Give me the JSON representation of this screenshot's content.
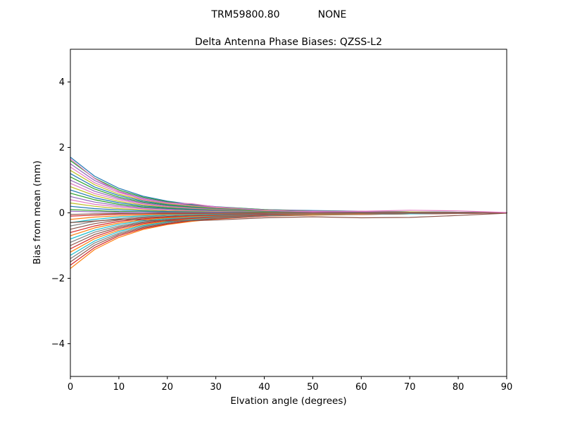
{
  "header": {
    "antenna": "TRM59800.80",
    "dome": "NONE"
  },
  "chart_data": {
    "type": "line",
    "title": "Delta Antenna Phase Biases: QZSS-L2",
    "xlabel": "Elvation angle (degrees)",
    "ylabel": "Bias from mean (mm)",
    "xlim": [
      0,
      90
    ],
    "ylim": [
      -5,
      5
    ],
    "xticks": [
      0,
      10,
      20,
      30,
      40,
      50,
      60,
      70,
      80,
      90
    ],
    "xticklabels": [
      "0",
      "10",
      "20",
      "30",
      "40",
      "50",
      "60",
      "70",
      "80",
      "90"
    ],
    "yticks": [
      -4,
      -2,
      0,
      2,
      4
    ],
    "yticklabels": [
      "−4",
      "−2",
      "0",
      "2",
      "4"
    ],
    "grid": false,
    "legend": null,
    "frame_color": "#000000",
    "line_width": 1.2,
    "x": [
      0,
      5,
      10,
      15,
      20,
      25,
      30,
      40,
      50,
      60,
      70,
      80,
      90
    ],
    "series": [
      {
        "color": "#1f77b4",
        "values": [
          1.7,
          1.12,
          0.75,
          0.51,
          0.36,
          0.26,
          0.19,
          0.1,
          0.07,
          0.05,
          0.03,
          0.02,
          0
        ]
      },
      {
        "color": "#ff7f0e",
        "values": [
          -1.7,
          -1.12,
          -0.75,
          -0.51,
          -0.36,
          -0.26,
          -0.19,
          -0.1,
          -0.07,
          -0.05,
          -0.03,
          -0.02,
          0
        ]
      },
      {
        "color": "#2ca02c",
        "values": [
          1.6,
          1.06,
          0.7,
          0.48,
          0.34,
          0.24,
          0.18,
          0.1,
          0.06,
          0.05,
          0.03,
          0.02,
          0
        ]
      },
      {
        "color": "#d62728",
        "values": [
          -1.6,
          -1.06,
          -0.7,
          -0.48,
          -0.34,
          -0.24,
          -0.18,
          -0.1,
          -0.06,
          -0.05,
          -0.03,
          -0.02,
          0
        ]
      },
      {
        "color": "#9467bd",
        "values": [
          1.5,
          0.99,
          0.66,
          0.45,
          0.32,
          0.23,
          0.17,
          0.09,
          0.06,
          0.05,
          0.03,
          0.02,
          0
        ]
      },
      {
        "color": "#8c564b",
        "values": [
          -1.5,
          -0.99,
          -0.66,
          -0.45,
          -0.32,
          -0.23,
          -0.17,
          -0.09,
          -0.06,
          -0.05,
          -0.03,
          -0.02,
          0
        ]
      },
      {
        "color": "#e377c2",
        "values": [
          1.4,
          0.92,
          0.62,
          0.42,
          0.29,
          0.21,
          0.15,
          0.08,
          0.06,
          0.04,
          0.03,
          0.01,
          0
        ]
      },
      {
        "color": "#7f7f7f",
        "values": [
          -1.4,
          -0.92,
          -0.62,
          -0.42,
          -0.29,
          -0.21,
          -0.15,
          -0.08,
          -0.06,
          -0.04,
          -0.03,
          -0.01,
          0
        ]
      },
      {
        "color": "#bcbd22",
        "values": [
          1.3,
          0.86,
          0.57,
          0.39,
          0.27,
          0.2,
          0.14,
          0.08,
          0.05,
          0.04,
          0.03,
          0.01,
          0
        ]
      },
      {
        "color": "#17becf",
        "values": [
          -1.3,
          -0.86,
          -0.57,
          -0.39,
          -0.27,
          -0.2,
          -0.14,
          -0.08,
          -0.05,
          -0.04,
          -0.03,
          -0.01,
          0
        ]
      },
      {
        "color": "#1f77b4",
        "values": [
          1.2,
          0.79,
          0.53,
          0.36,
          0.25,
          0.18,
          0.13,
          0.07,
          0.05,
          0.04,
          0.02,
          0.01,
          0
        ]
      },
      {
        "color": "#ff7f0e",
        "values": [
          -1.2,
          -0.79,
          -0.53,
          -0.36,
          -0.25,
          -0.18,
          -0.13,
          -0.07,
          -0.05,
          -0.04,
          -0.02,
          -0.01,
          0
        ]
      },
      {
        "color": "#2ca02c",
        "values": [
          1.1,
          0.73,
          0.48,
          0.33,
          0.23,
          0.17,
          0.12,
          0.07,
          0.04,
          0.03,
          0.02,
          0.01,
          0
        ]
      },
      {
        "color": "#d62728",
        "values": [
          -1.1,
          -0.73,
          -0.48,
          -0.33,
          -0.23,
          -0.17,
          -0.12,
          -0.07,
          -0.04,
          -0.03,
          -0.02,
          -0.01,
          0
        ]
      },
      {
        "color": "#9467bd",
        "values": [
          1.0,
          0.66,
          0.44,
          0.3,
          0.21,
          0.15,
          0.11,
          0.06,
          0.04,
          0.03,
          0.02,
          0.01,
          0
        ]
      },
      {
        "color": "#8c564b",
        "values": [
          -1.0,
          -0.66,
          -0.44,
          -0.3,
          -0.21,
          -0.15,
          -0.11,
          -0.06,
          -0.04,
          -0.03,
          -0.02,
          -0.01,
          0
        ]
      },
      {
        "color": "#e377c2",
        "values": [
          0.9,
          0.59,
          0.4,
          0.27,
          0.19,
          0.14,
          0.1,
          0.05,
          0.04,
          0.03,
          0.02,
          0.01,
          0
        ]
      },
      {
        "color": "#7f7f7f",
        "values": [
          -0.9,
          -0.59,
          -0.4,
          -0.27,
          -0.19,
          -0.14,
          -0.1,
          -0.05,
          -0.04,
          -0.03,
          -0.02,
          -0.01,
          0
        ]
      },
      {
        "color": "#bcbd22",
        "values": [
          0.8,
          0.53,
          0.35,
          0.24,
          0.17,
          0.12,
          0.09,
          0.05,
          0.03,
          0.02,
          0.02,
          0.01,
          0
        ]
      },
      {
        "color": "#17becf",
        "values": [
          -0.8,
          -0.53,
          -0.35,
          -0.24,
          -0.17,
          -0.12,
          -0.09,
          -0.05,
          -0.03,
          -0.02,
          -0.02,
          -0.01,
          0
        ]
      },
      {
        "color": "#1f77b4",
        "values": [
          0.7,
          0.46,
          0.31,
          0.21,
          0.15,
          0.11,
          0.08,
          0.04,
          0.03,
          0.02,
          0.01,
          0.01,
          0
        ]
      },
      {
        "color": "#ff7f0e",
        "values": [
          -0.7,
          -0.46,
          -0.31,
          -0.21,
          -0.15,
          -0.11,
          -0.08,
          -0.04,
          -0.03,
          -0.02,
          -0.01,
          -0.01,
          0
        ]
      },
      {
        "color": "#2ca02c",
        "values": [
          0.6,
          0.4,
          0.26,
          0.18,
          0.13,
          0.09,
          0.07,
          0.04,
          0.02,
          0.02,
          0.01,
          0.01,
          0
        ]
      },
      {
        "color": "#d62728",
        "values": [
          -0.6,
          -0.4,
          -0.26,
          -0.18,
          -0.13,
          -0.09,
          -0.07,
          -0.04,
          -0.02,
          -0.02,
          -0.01,
          -0.01,
          0
        ]
      },
      {
        "color": "#9467bd",
        "values": [
          0.5,
          0.33,
          0.22,
          0.15,
          0.11,
          0.08,
          0.06,
          0.03,
          0.02,
          0.02,
          0.01,
          0.01,
          0
        ]
      },
      {
        "color": "#8c564b",
        "values": [
          -0.5,
          -0.33,
          -0.22,
          -0.15,
          -0.11,
          -0.08,
          -0.06,
          -0.03,
          -0.02,
          -0.02,
          -0.01,
          -0.01,
          0
        ]
      },
      {
        "color": "#e377c2",
        "values": [
          0.4,
          0.26,
          0.18,
          0.12,
          0.08,
          0.06,
          0.04,
          0.02,
          0.02,
          0.01,
          0.01,
          0,
          0
        ]
      },
      {
        "color": "#7f7f7f",
        "values": [
          -0.4,
          -0.26,
          -0.18,
          -0.12,
          -0.08,
          -0.06,
          -0.04,
          -0.02,
          -0.02,
          -0.01,
          -0.01,
          0,
          0
        ]
      },
      {
        "color": "#bcbd22",
        "values": [
          0.3,
          0.2,
          0.13,
          0.09,
          0.06,
          0.05,
          0.03,
          0.02,
          0.01,
          0.01,
          0.01,
          0,
          0
        ]
      },
      {
        "color": "#17becf",
        "values": [
          -0.3,
          -0.2,
          -0.13,
          -0.09,
          -0.06,
          -0.05,
          -0.03,
          -0.02,
          -0.01,
          -0.01,
          -0.01,
          0,
          0
        ]
      },
      {
        "color": "#1f77b4",
        "values": [
          0.2,
          0.13,
          0.09,
          0.06,
          0.04,
          0.03,
          0.02,
          0.01,
          0.01,
          0.01,
          0,
          0,
          0
        ]
      },
      {
        "color": "#ff7f0e",
        "values": [
          -0.2,
          -0.13,
          -0.09,
          -0.06,
          -0.04,
          -0.03,
          -0.02,
          -0.01,
          -0.01,
          -0.01,
          0,
          0,
          0
        ]
      },
      {
        "color": "#2ca02c",
        "values": [
          0.1,
          0.07,
          0.04,
          0.03,
          0.02,
          0.02,
          0.01,
          0.01,
          0,
          0,
          0,
          0,
          0
        ]
      },
      {
        "color": "#d62728",
        "values": [
          -0.1,
          -0.07,
          -0.04,
          -0.03,
          -0.02,
          -0.02,
          -0.01,
          -0.01,
          0,
          0,
          0,
          0,
          0
        ]
      },
      {
        "color": "#9467bd",
        "values": [
          0.05,
          0.03,
          0.02,
          0.02,
          0.01,
          0.01,
          0.01,
          0,
          0,
          0,
          0,
          0,
          0
        ]
      },
      {
        "color": "#8c564b",
        "values": [
          -0.05,
          -0.03,
          -0.02,
          -0.02,
          -0.01,
          -0.01,
          -0.01,
          0,
          0,
          0,
          0,
          0,
          0
        ]
      },
      {
        "color": "#e377c2",
        "values": [
          1.65,
          1.05,
          0.65,
          0.4,
          0.3,
          0.28,
          0.18,
          0.08,
          0.03,
          0.05,
          0.08,
          0.06,
          0.01
        ]
      },
      {
        "color": "#8c564b",
        "values": [
          -0.3,
          -0.25,
          -0.2,
          -0.22,
          -0.25,
          -0.24,
          -0.22,
          -0.15,
          -0.12,
          -0.15,
          -0.14,
          -0.08,
          -0.01
        ]
      }
    ]
  }
}
